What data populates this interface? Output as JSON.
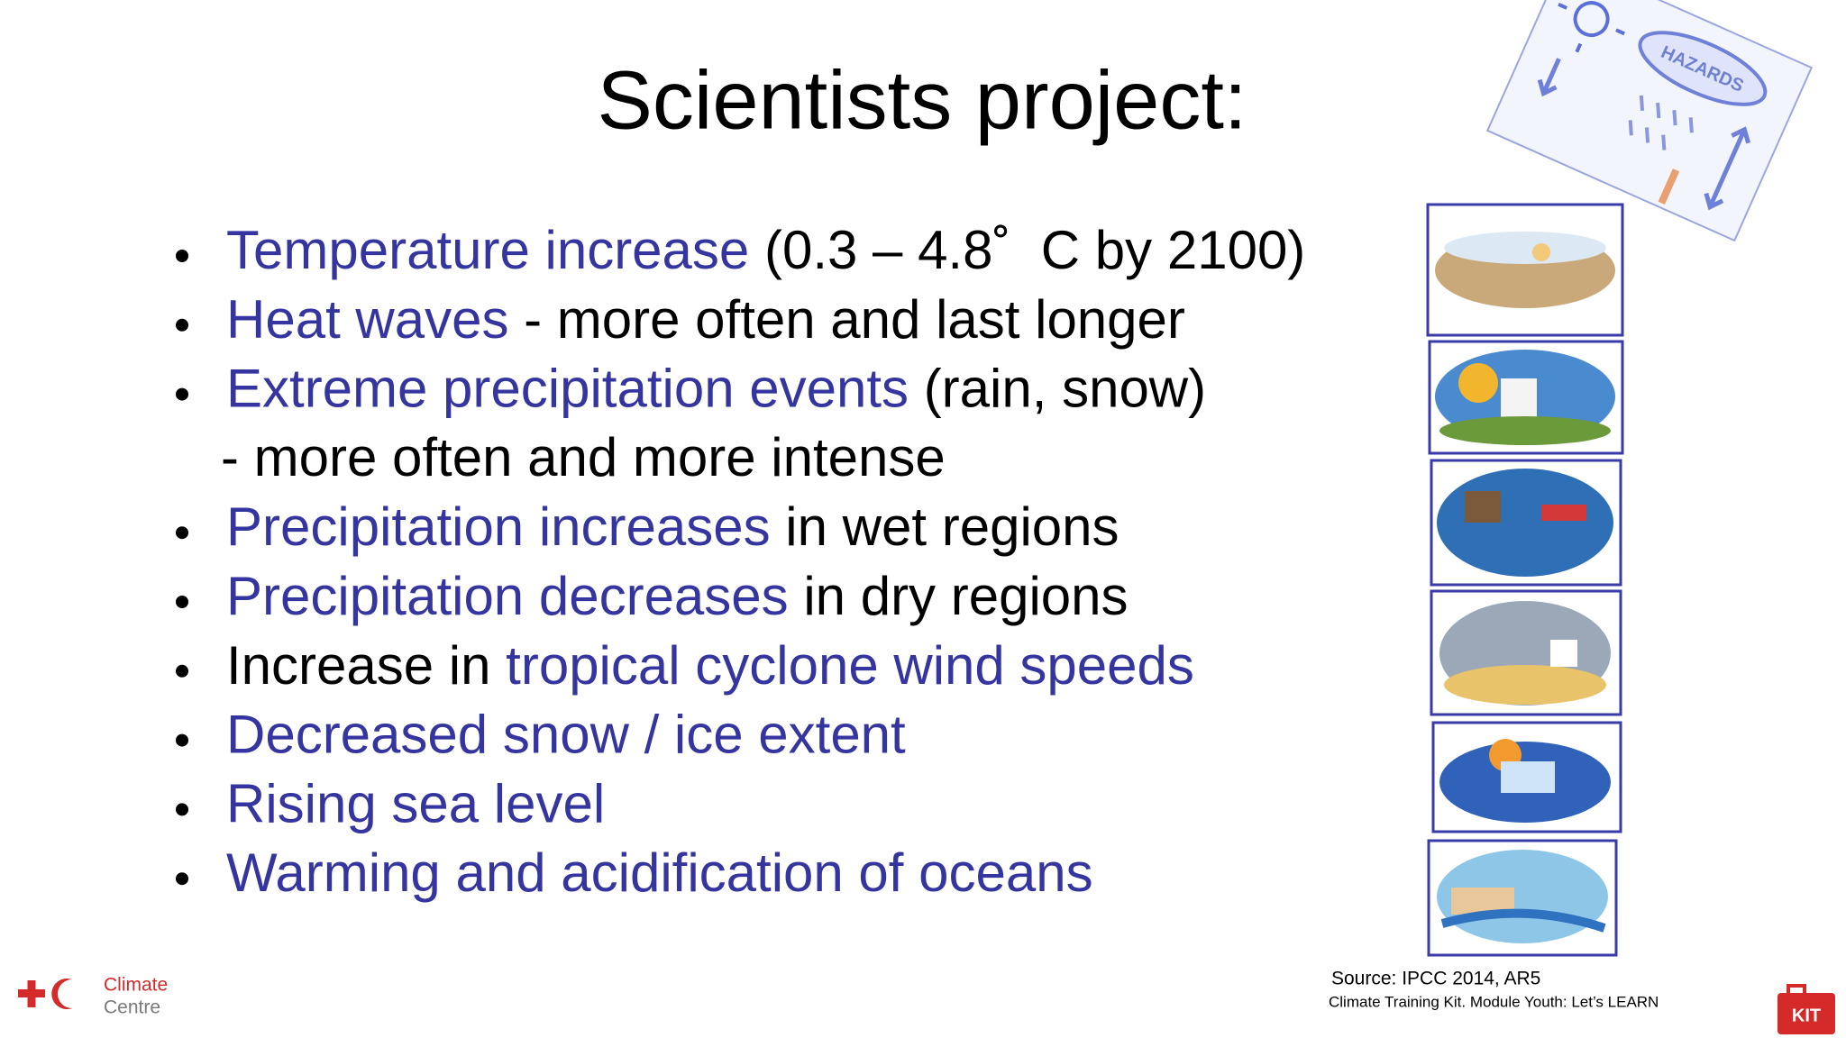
{
  "title": "Scientists project:",
  "bullets": [
    {
      "segments": [
        {
          "text": "Temperature increase",
          "color": "#3535a0"
        },
        {
          "text": " (0.3 – 4.8˚  C by 2100)",
          "color": "#000000"
        }
      ]
    },
    {
      "segments": [
        {
          "text": "Heat waves",
          "color": "#3535a0"
        },
        {
          "text": " - more often and last longer",
          "color": "#000000"
        }
      ]
    },
    {
      "segments": [
        {
          "text": "Extreme precipitation events",
          "color": "#3535a0"
        },
        {
          "text": " (rain, snow)",
          "color": "#000000"
        }
      ],
      "continuation": "- more often and more intense"
    },
    {
      "segments": [
        {
          "text": "Precipitation increases",
          "color": "#3535a0"
        },
        {
          "text": " in wet regions",
          "color": "#000000"
        }
      ]
    },
    {
      "segments": [
        {
          "text": "Precipitation decreases",
          "color": "#3535a0"
        },
        {
          "text": " in dry regions",
          "color": "#000000"
        }
      ]
    },
    {
      "segments": [
        {
          "text": "Increase in ",
          "color": "#000000"
        },
        {
          "text": "tropical cyclone wind speeds",
          "color": "#3535a0"
        }
      ]
    },
    {
      "segments": [
        {
          "text": "Decreased snow / ice extent",
          "color": "#3535a0"
        }
      ]
    },
    {
      "segments": [
        {
          "text": "Rising sea level",
          "color": "#3535a0"
        }
      ]
    },
    {
      "segments": [
        {
          "text": "Warming and acidification of oceans",
          "color": "#3535a0"
        }
      ]
    }
  ],
  "hazards_label": "HAZARDS",
  "source": "Source: IPCC 2014, AR5",
  "credit": "Climate Training Kit. Module Youth: Let’s LEARN",
  "logo": {
    "line1": "Climate",
    "line2": "Centre"
  },
  "kit_label": "KIT"
}
